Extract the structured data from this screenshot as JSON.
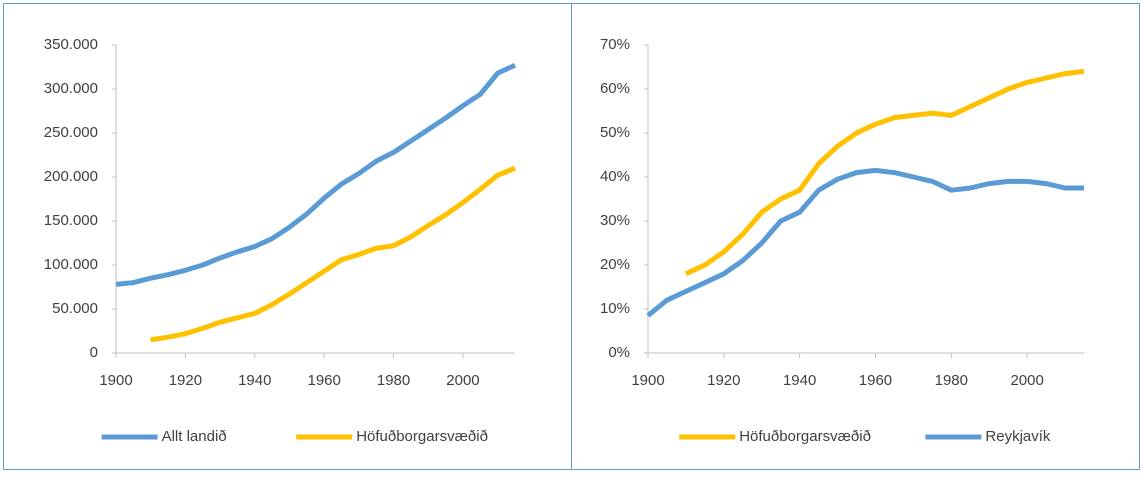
{
  "chart_data": [
    {
      "type": "line",
      "legend": "bottom",
      "x": [
        1900,
        1905,
        1910,
        1915,
        1920,
        1925,
        1930,
        1935,
        1940,
        1945,
        1950,
        1955,
        1960,
        1965,
        1970,
        1975,
        1980,
        1985,
        1990,
        1995,
        2000,
        2005,
        2010,
        2015
      ],
      "series": [
        {
          "name": "Allt landið",
          "color": "#5b9bd5",
          "values": [
            78000,
            80000,
            85000,
            89000,
            94000,
            100000,
            108000,
            115000,
            121000,
            130000,
            143000,
            158000,
            176000,
            192000,
            204000,
            218000,
            228000,
            241000,
            254000,
            267000,
            281000,
            294000,
            318000,
            327000
          ]
        },
        {
          "name": "Höfuðborgarsvæðið",
          "color": "#ffc000",
          "values": [
            null,
            null,
            15000,
            18000,
            22000,
            28000,
            35000,
            40000,
            45000,
            55000,
            67000,
            80000,
            93000,
            106000,
            112000,
            119000,
            122000,
            132000,
            145000,
            157000,
            171000,
            186000,
            202000,
            210000
          ]
        }
      ],
      "xlim": [
        1900,
        2015
      ],
      "xticks": [
        1900,
        1920,
        1940,
        1960,
        1980,
        2000
      ],
      "ylim": [
        0,
        350000
      ],
      "yticks": [
        0,
        {
          "value": 50000,
          "label": "50.000"
        },
        {
          "value": 100000,
          "label": "100.000"
        },
        {
          "value": 150000,
          "label": "150.000"
        },
        {
          "value": 200000,
          "label": "200.000"
        },
        {
          "value": 250000,
          "label": "250.000"
        },
        {
          "value": 300000,
          "label": "300.000"
        },
        {
          "value": 350000,
          "label": "350.000"
        }
      ]
    },
    {
      "type": "line",
      "legend": "bottom",
      "x": [
        1900,
        1905,
        1910,
        1915,
        1920,
        1925,
        1930,
        1935,
        1940,
        1945,
        1950,
        1955,
        1960,
        1965,
        1970,
        1975,
        1980,
        1985,
        1990,
        1995,
        2000,
        2005,
        2010,
        2015
      ],
      "series": [
        {
          "name": "Höfuðborgarsvæðið",
          "color": "#ffc000",
          "values": [
            null,
            null,
            18,
            20,
            23,
            27,
            32,
            35,
            37,
            43,
            47,
            50,
            52,
            53.5,
            54,
            54.5,
            54,
            56,
            58,
            60,
            61.5,
            62.5,
            63.5,
            64
          ]
        },
        {
          "name": "Reykjavík",
          "color": "#5b9bd5",
          "values": [
            8.5,
            12,
            14,
            16,
            18,
            21,
            25,
            30,
            32,
            37,
            39.5,
            41,
            41.5,
            41,
            40,
            39,
            37,
            37.5,
            38.5,
            39,
            39,
            38.5,
            37.5,
            37.5
          ]
        }
      ],
      "xlim": [
        1900,
        2015
      ],
      "xticks": [
        1900,
        1920,
        1940,
        1960,
        1980,
        2000
      ],
      "ylim": [
        0,
        70
      ],
      "yticks": [
        {
          "value": 0,
          "label": "0%"
        },
        {
          "value": 10,
          "label": "10%"
        },
        {
          "value": 20,
          "label": "20%"
        },
        {
          "value": 30,
          "label": "30%"
        },
        {
          "value": 40,
          "label": "40%"
        },
        {
          "value": 50,
          "label": "50%"
        },
        {
          "value": 60,
          "label": "60%"
        },
        {
          "value": 70,
          "label": "70%"
        }
      ]
    }
  ]
}
